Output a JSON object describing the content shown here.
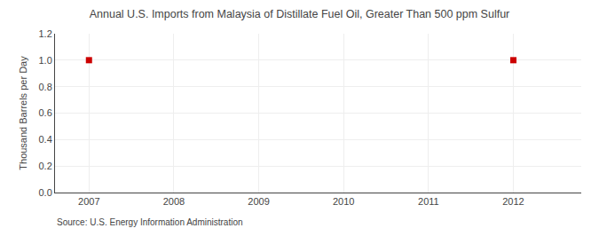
{
  "chart_data": {
    "type": "scatter",
    "title": "Annual U.S. Imports from Malaysia of Distillate Fuel Oil, Greater Than 500 ppm Sulfur",
    "ylabel": "Thousand Barrels per Day",
    "annotations": [
      "Source: U.S. Energy Information Administration"
    ],
    "x": [
      2007,
      2012
    ],
    "values": [
      1.0,
      1.0
    ],
    "color": "#cc0000",
    "marker": "square",
    "xlim": [
      2006.6,
      2012.8
    ],
    "xticks": [
      2007,
      2008,
      2009,
      2010,
      2011,
      2012
    ],
    "ylim": [
      0.0,
      1.2
    ],
    "yticks": [
      {
        "value": 0.0,
        "label": "0.0"
      },
      0.2,
      0.4,
      0.6,
      0.8,
      {
        "value": 1.0,
        "label": "1.0"
      },
      1.2
    ],
    "grid": true
  }
}
